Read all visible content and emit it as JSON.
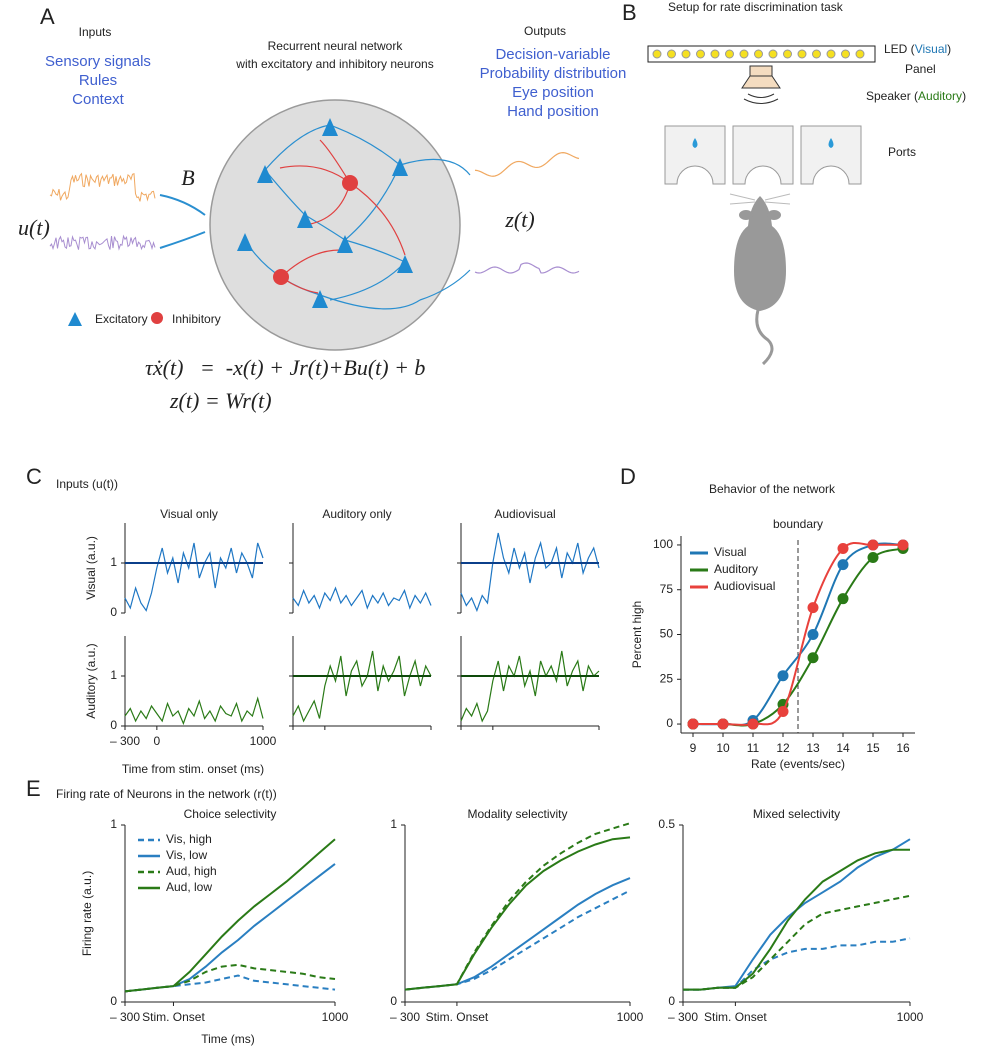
{
  "panel_a": {
    "label": "A",
    "inputs_title": "Inputs",
    "inputs": [
      "Sensory signals",
      "Rules",
      "Context"
    ],
    "network_title": [
      "Recurrent neural network",
      "with excitatory and inhibitory neurons"
    ],
    "outputs_title": "Outputs",
    "outputs": [
      "Decision-variable",
      "Probability distribution",
      "Eye position",
      "Hand position"
    ],
    "input_symbol": "u(t)",
    "input_weight": "B",
    "output_symbol": "z(t)",
    "legend": [
      "Excitatory",
      "Inhibitory"
    ],
    "equations": [
      "τẋ(t)   =  -x(t) + Jr(t)+Bu(t) + b",
      "z(t) = Wr(t)"
    ]
  },
  "panel_b": {
    "label": "B",
    "title": "Setup for rate discrimination task",
    "led": [
      "LED (",
      "Visual",
      ")"
    ],
    "led_line2": "Panel",
    "speaker": [
      "Speaker (",
      "Auditory",
      ")"
    ],
    "ports": "Ports"
  },
  "chart_data": [
    {
      "type": "line",
      "panel_label": "C",
      "title": "Inputs (u(t))",
      "column_titles": [
        "Visual only",
        "Auditory only",
        "Audiovisual"
      ],
      "column_colors": [
        "#2a7fc1",
        "#2a7a17",
        "#e8413c"
      ],
      "row_labels": [
        "Visual (a.u.)",
        "Auditory (a.u.)"
      ],
      "row_colors": [
        "#1f77c4",
        "#2a7a17"
      ],
      "reference_colors": [
        "#0b3f8a",
        "#0e4a0a"
      ],
      "x": [
        -300,
        -250,
        -200,
        -150,
        -100,
        -50,
        0,
        50,
        100,
        150,
        200,
        250,
        300,
        350,
        400,
        450,
        500,
        550,
        600,
        650,
        700,
        750,
        800,
        850,
        900,
        950,
        1000
      ],
      "xlim": [
        -300,
        1000
      ],
      "xticks": [
        {
          "value": -300,
          "label": "– 300"
        },
        0,
        1000
      ],
      "xlabel": "Time from stim. onset (ms)",
      "ylim": [
        0,
        1.8
      ],
      "yticks": [
        0,
        1
      ],
      "cells": [
        [
          {
            "reference": 1,
            "values": [
              0.3,
              0.1,
              0.5,
              0.2,
              0.05,
              0.4,
              0.9,
              1.3,
              0.8,
              1.1,
              0.6,
              1.2,
              0.9,
              1.4,
              0.7,
              1.0,
              1.2,
              0.5,
              1.1,
              0.9,
              1.3,
              0.8,
              1.2,
              1.0,
              0.7,
              1.4,
              1.1
            ]
          },
          {
            "values": [
              0.3,
              0.15,
              0.45,
              0.2,
              0.35,
              0.1,
              0.4,
              0.25,
              0.5,
              0.2,
              0.35,
              0.15,
              0.3,
              0.45,
              0.1,
              0.35,
              0.2,
              0.4,
              0.15,
              0.3,
              0.25,
              0.45,
              0.1,
              0.35,
              0.2,
              0.4,
              0.15
            ]
          },
          {
            "reference": 1,
            "values": [
              0.4,
              0.15,
              0.3,
              0.05,
              0.35,
              0.2,
              1.0,
              1.6,
              1.1,
              0.8,
              1.3,
              0.9,
              1.2,
              0.6,
              1.1,
              1.4,
              0.9,
              1.0,
              1.3,
              0.7,
              1.2,
              1.0,
              1.4,
              0.8,
              1.1,
              1.3,
              0.9
            ]
          }
        ],
        [
          {
            "values": [
              0.2,
              0.35,
              0.1,
              0.3,
              0.15,
              0.4,
              0.25,
              0.1,
              0.45,
              0.2,
              0.3,
              0.05,
              0.35,
              0.2,
              0.5,
              0.15,
              0.3,
              0.1,
              0.4,
              0.25,
              0.2,
              0.45,
              0.1,
              0.3,
              0.2,
              0.55,
              0.15
            ]
          },
          {
            "reference": 1,
            "values": [
              0.2,
              0.4,
              0.1,
              0.3,
              0.5,
              0.15,
              0.8,
              1.2,
              0.9,
              1.4,
              0.6,
              1.1,
              1.3,
              0.8,
              1.0,
              1.5,
              0.7,
              1.2,
              0.9,
              1.1,
              1.4,
              0.6,
              1.0,
              1.3,
              0.8,
              1.2,
              1.0
            ]
          },
          {
            "reference": 1,
            "values": [
              0.1,
              0.35,
              0.2,
              0.45,
              0.1,
              0.3,
              0.9,
              1.3,
              0.7,
              1.2,
              1.0,
              1.4,
              0.8,
              1.1,
              0.6,
              1.3,
              1.0,
              1.2,
              0.9,
              1.5,
              0.8,
              1.1,
              1.3,
              0.7,
              1.2,
              1.0,
              1.1
            ]
          }
        ]
      ]
    },
    {
      "type": "line",
      "panel_label": "D",
      "title": "Behavior of the network",
      "markers": true,
      "x": [
        9,
        10,
        11,
        12,
        13,
        14,
        15,
        16
      ],
      "xlim": [
        8.6,
        16.4
      ],
      "xticks": [
        9,
        10,
        11,
        12,
        13,
        14,
        15,
        16
      ],
      "xlabel": "Rate (events/sec)",
      "ylabel": "Percent high",
      "ylim": [
        -5,
        105
      ],
      "yticks": [
        0,
        25,
        50,
        75,
        100
      ],
      "boundary": 12.5,
      "boundary_label": "boundary",
      "legend": "upper left",
      "series": [
        {
          "name": "Visual",
          "color": "#1f77b4",
          "values": [
            0,
            0,
            2,
            27,
            50,
            89,
            100,
            100
          ]
        },
        {
          "name": "Auditory",
          "color": "#2a7a17",
          "values": [
            0,
            0,
            0,
            11,
            37,
            70,
            93,
            98
          ]
        },
        {
          "name": "Audiovisual",
          "color": "#e8413c",
          "values": [
            0,
            0,
            0,
            7,
            65,
            98,
            100,
            100
          ]
        }
      ]
    },
    {
      "type": "line",
      "panel_label": "E",
      "figure_title": "Firing rate of Neurons in the network (r(t))",
      "title": "Choice selectivity",
      "x": [
        -300,
        -200,
        -100,
        0,
        100,
        200,
        300,
        400,
        500,
        600,
        700,
        800,
        900,
        1000
      ],
      "xlim": [
        -300,
        1000
      ],
      "xticks": [
        {
          "value": -300,
          "label": "– 300"
        },
        {
          "value": 0,
          "label": "Stim. Onset"
        },
        1000
      ],
      "xlabel": "Time (ms)",
      "ylabel": "Firing rate (a.u.)",
      "ylim": [
        0,
        1
      ],
      "yticks": [
        0,
        1
      ],
      "legend": "upper left",
      "series": [
        {
          "name": "Vis, high",
          "color": "#2a7fc1",
          "style": "dashed",
          "values": [
            0.06,
            0.07,
            0.08,
            0.09,
            0.1,
            0.11,
            0.13,
            0.15,
            0.12,
            0.11,
            0.1,
            0.09,
            0.08,
            0.07
          ]
        },
        {
          "name": "Vis, low",
          "color": "#2a7fc1",
          "style": "solid",
          "values": [
            0.06,
            0.07,
            0.08,
            0.09,
            0.13,
            0.2,
            0.28,
            0.35,
            0.43,
            0.5,
            0.57,
            0.64,
            0.71,
            0.78
          ]
        },
        {
          "name": "Aud, high",
          "color": "#2a7a17",
          "style": "dashed",
          "values": [
            0.06,
            0.07,
            0.08,
            0.09,
            0.12,
            0.17,
            0.2,
            0.21,
            0.19,
            0.18,
            0.17,
            0.16,
            0.14,
            0.13
          ]
        },
        {
          "name": "Aud, low",
          "color": "#2a7a17",
          "style": "solid",
          "values": [
            0.06,
            0.07,
            0.08,
            0.09,
            0.17,
            0.27,
            0.37,
            0.46,
            0.54,
            0.61,
            0.68,
            0.76,
            0.84,
            0.92
          ]
        }
      ]
    },
    {
      "type": "line",
      "title": "Modality selectivity",
      "x": [
        -300,
        -200,
        -100,
        0,
        100,
        200,
        300,
        400,
        500,
        600,
        700,
        800,
        900,
        1000
      ],
      "xlim": [
        -300,
        1000
      ],
      "xticks": [
        {
          "value": -300,
          "label": "– 300"
        },
        {
          "value": 0,
          "label": "Stim. Onset"
        },
        1000
      ],
      "ylim": [
        0,
        1
      ],
      "yticks": [
        0,
        1
      ],
      "series": [
        {
          "color": "#2a7fc1",
          "style": "dashed",
          "values": [
            0.07,
            0.08,
            0.09,
            0.1,
            0.13,
            0.18,
            0.24,
            0.3,
            0.36,
            0.42,
            0.48,
            0.53,
            0.58,
            0.63
          ]
        },
        {
          "color": "#2a7fc1",
          "style": "solid",
          "values": [
            0.07,
            0.08,
            0.09,
            0.1,
            0.14,
            0.2,
            0.27,
            0.34,
            0.41,
            0.48,
            0.55,
            0.61,
            0.66,
            0.7
          ]
        },
        {
          "color": "#2a7a17",
          "style": "dashed",
          "values": [
            0.07,
            0.08,
            0.09,
            0.1,
            0.28,
            0.43,
            0.57,
            0.68,
            0.77,
            0.84,
            0.9,
            0.95,
            0.98,
            1.01
          ]
        },
        {
          "color": "#2a7a17",
          "style": "solid",
          "values": [
            0.07,
            0.08,
            0.09,
            0.1,
            0.27,
            0.42,
            0.55,
            0.66,
            0.74,
            0.8,
            0.85,
            0.89,
            0.92,
            0.93
          ]
        }
      ]
    },
    {
      "type": "line",
      "title": "Mixed selectivity",
      "x": [
        -300,
        -200,
        -100,
        0,
        100,
        200,
        300,
        400,
        500,
        600,
        700,
        800,
        900,
        1000
      ],
      "xlim": [
        -300,
        1000
      ],
      "xticks": [
        {
          "value": -300,
          "label": "– 300"
        },
        {
          "value": 0,
          "label": "Stim. Onset"
        },
        1000
      ],
      "ylim": [
        0,
        0.5
      ],
      "yticks": [
        0,
        0.5
      ],
      "series": [
        {
          "color": "#2a7fc1",
          "style": "dashed",
          "values": [
            0.035,
            0.035,
            0.04,
            0.04,
            0.09,
            0.12,
            0.14,
            0.15,
            0.15,
            0.16,
            0.16,
            0.17,
            0.17,
            0.18
          ]
        },
        {
          "color": "#2a7fc1",
          "style": "solid",
          "values": [
            0.035,
            0.035,
            0.04,
            0.045,
            0.12,
            0.19,
            0.24,
            0.28,
            0.31,
            0.34,
            0.38,
            0.41,
            0.43,
            0.46
          ]
        },
        {
          "color": "#2a7a17",
          "style": "dashed",
          "values": [
            0.035,
            0.035,
            0.04,
            0.04,
            0.07,
            0.12,
            0.17,
            0.22,
            0.25,
            0.26,
            0.27,
            0.28,
            0.29,
            0.3
          ]
        },
        {
          "color": "#2a7a17",
          "style": "solid",
          "values": [
            0.035,
            0.035,
            0.04,
            0.04,
            0.08,
            0.15,
            0.23,
            0.29,
            0.34,
            0.37,
            0.4,
            0.42,
            0.43,
            0.43
          ]
        }
      ]
    }
  ]
}
